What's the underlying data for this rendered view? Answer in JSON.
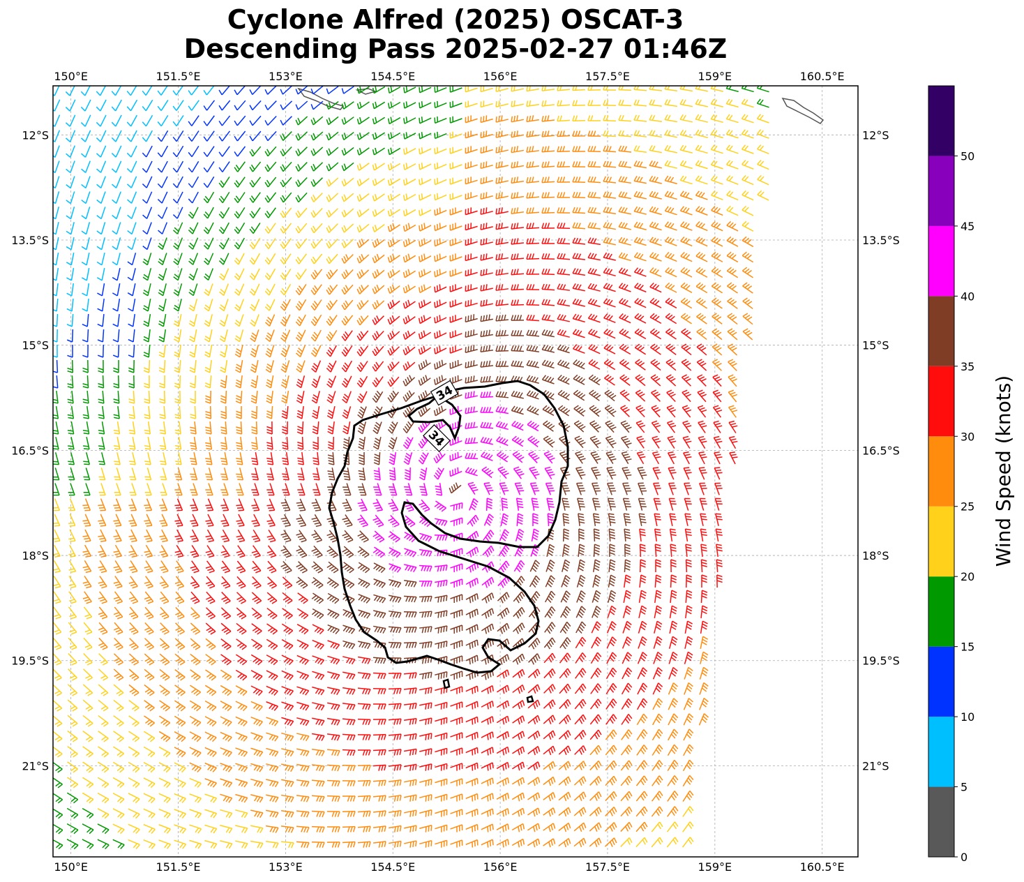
{
  "title": {
    "line1": "Cyclone Alfred (2025) OSCAT-3",
    "line2": "Descending Pass 2025-02-27 01:46Z"
  },
  "lon_ticks": [
    "150°E",
    "151.5°E",
    "153°E",
    "154.5°E",
    "156°E",
    "157.5°E",
    "159°E",
    "160.5°E"
  ],
  "lat_ticks": [
    "12°S",
    "13.5°S",
    "15°S",
    "16.5°S",
    "18°S",
    "19.5°S",
    "21°S"
  ],
  "map": {
    "lon_range": [
      149.75,
      161.0
    ],
    "lat_range": [
      -22.3,
      -11.3
    ],
    "grid": true,
    "center": {
      "lon": 155.4,
      "lat": -17.1
    },
    "contour_label": "34",
    "barb_units": "knots"
  },
  "colorbar": {
    "label": "Wind Speed (knots)",
    "ticks": [
      "0",
      "5",
      "10",
      "15",
      "20",
      "25",
      "30",
      "35",
      "40",
      "45",
      "50"
    ],
    "bins": [
      {
        "min": 0,
        "max": 5,
        "color": "#595959"
      },
      {
        "min": 5,
        "max": 10,
        "color": "#00bfff"
      },
      {
        "min": 10,
        "max": 15,
        "color": "#0033ff"
      },
      {
        "min": 15,
        "max": 20,
        "color": "#009900"
      },
      {
        "min": 20,
        "max": 25,
        "color": "#ffd11a"
      },
      {
        "min": 25,
        "max": 30,
        "color": "#ff8c0d"
      },
      {
        "min": 30,
        "max": 35,
        "color": "#ff0d0d"
      },
      {
        "min": 35,
        "max": 40,
        "color": "#803d26"
      },
      {
        "min": 40,
        "max": 45,
        "color": "#ff00ff"
      },
      {
        "min": 45,
        "max": 50,
        "color": "#8800bb"
      },
      {
        "min": 50,
        "max": 55,
        "color": "#330066"
      }
    ]
  }
}
